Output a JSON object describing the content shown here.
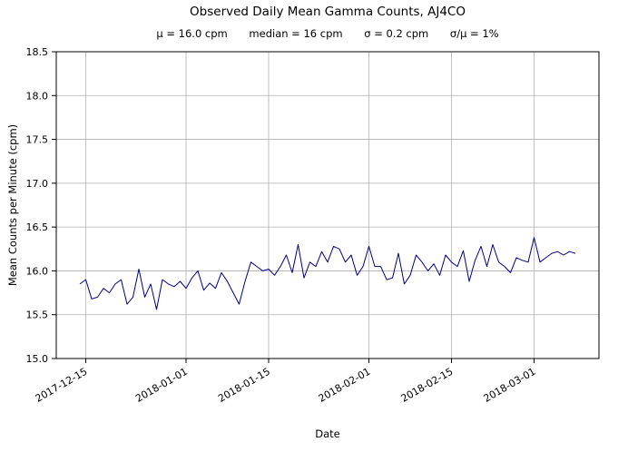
{
  "chart_data": {
    "type": "line",
    "title": "Observed Daily Mean Gamma Counts, AJ4CO",
    "stats": [
      "μ = 16.0 cpm",
      "median = 16 cpm",
      "σ = 0.2 cpm",
      "σ/μ = 1%"
    ],
    "xlabel": "Date",
    "ylabel": "Mean Counts per Minute (cpm)",
    "ylim": [
      15.0,
      18.5
    ],
    "yticks": [
      15.0,
      15.5,
      16.0,
      16.5,
      17.0,
      17.5,
      18.0,
      18.5
    ],
    "grid": true,
    "legend": "none",
    "line_color": "#000080",
    "grid_color": "#b0b0b0",
    "x_domain_index": [
      -4,
      88
    ],
    "xticks": [
      {
        "label": "2017-12-15",
        "index": 1
      },
      {
        "label": "2018-01-01",
        "index": 18
      },
      {
        "label": "2018-01-15",
        "index": 32
      },
      {
        "label": "2018-02-01",
        "index": 49
      },
      {
        "label": "2018-02-15",
        "index": 63
      },
      {
        "label": "2018-03-01",
        "index": 77
      }
    ],
    "x_dates": [
      "2017-12-14",
      "2017-12-15",
      "2017-12-16",
      "2017-12-17",
      "2017-12-18",
      "2017-12-19",
      "2017-12-20",
      "2017-12-21",
      "2017-12-22",
      "2017-12-23",
      "2017-12-24",
      "2017-12-25",
      "2017-12-26",
      "2017-12-27",
      "2017-12-28",
      "2017-12-29",
      "2017-12-30",
      "2017-12-31",
      "2018-01-01",
      "2018-01-02",
      "2018-01-03",
      "2018-01-04",
      "2018-01-05",
      "2018-01-06",
      "2018-01-07",
      "2018-01-08",
      "2018-01-09",
      "2018-01-10",
      "2018-01-11",
      "2018-01-12",
      "2018-01-13",
      "2018-01-14",
      "2018-01-15",
      "2018-01-16",
      "2018-01-17",
      "2018-01-18",
      "2018-01-19",
      "2018-01-20",
      "2018-01-21",
      "2018-01-22",
      "2018-01-23",
      "2018-01-24",
      "2018-01-25",
      "2018-01-26",
      "2018-01-27",
      "2018-01-28",
      "2018-01-29",
      "2018-01-30",
      "2018-01-31",
      "2018-02-01",
      "2018-02-02",
      "2018-02-03",
      "2018-02-04",
      "2018-02-05",
      "2018-02-06",
      "2018-02-07",
      "2018-02-08",
      "2018-02-09",
      "2018-02-10",
      "2018-02-11",
      "2018-02-12",
      "2018-02-13",
      "2018-02-14",
      "2018-02-15",
      "2018-02-16",
      "2018-02-17",
      "2018-02-18",
      "2018-02-19",
      "2018-02-20",
      "2018-02-21",
      "2018-02-22",
      "2018-02-23",
      "2018-02-24",
      "2018-02-25",
      "2018-02-26",
      "2018-02-27",
      "2018-02-28",
      "2018-03-01",
      "2018-03-02",
      "2018-03-03",
      "2018-03-04",
      "2018-03-05",
      "2018-03-06",
      "2018-03-07",
      "2018-03-08"
    ],
    "values": [
      15.85,
      15.9,
      15.68,
      15.7,
      15.8,
      15.75,
      15.85,
      15.9,
      15.62,
      15.7,
      16.02,
      15.7,
      15.85,
      15.56,
      15.9,
      15.85,
      15.82,
      15.88,
      15.8,
      15.92,
      16.0,
      15.78,
      15.86,
      15.8,
      15.98,
      15.88,
      15.75,
      15.62,
      15.88,
      16.1,
      16.05,
      16.0,
      16.02,
      15.95,
      16.05,
      16.18,
      15.98,
      16.3,
      15.92,
      16.1,
      16.05,
      16.22,
      16.1,
      16.28,
      16.25,
      16.1,
      16.18,
      15.95,
      16.05,
      16.28,
      16.05,
      16.05,
      15.9,
      15.92,
      16.2,
      15.85,
      15.95,
      16.18,
      16.1,
      16.0,
      16.08,
      15.95,
      16.18,
      16.1,
      16.05,
      16.23,
      15.88,
      16.12,
      16.28,
      16.05,
      16.3,
      16.1,
      16.05,
      15.98,
      16.15,
      16.12,
      16.1,
      16.38,
      16.1,
      16.15,
      16.2,
      16.22,
      16.18,
      16.22,
      16.2
    ]
  }
}
